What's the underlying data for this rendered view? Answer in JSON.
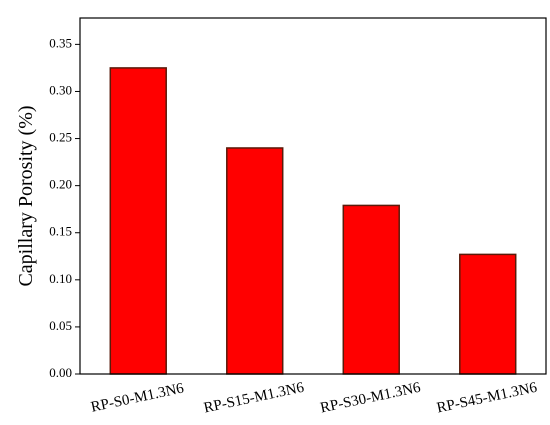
{
  "chart_data": {
    "type": "bar",
    "ylabel": "Capillary Porosity (%)",
    "categories": [
      "RP-S0-M1.3N6",
      "RP-S15-M1.3N6",
      "RP-S30-M1.3N6",
      "RP-S45-M1.3N6"
    ],
    "values": [
      0.325,
      0.24,
      0.179,
      0.127
    ],
    "color": "#ff0000",
    "ylim": [
      0,
      0.378
    ],
    "yticks": [
      {
        "value": 0,
        "label": "0.00"
      },
      0.05,
      {
        "value": 0.1,
        "label": "0.10"
      },
      0.15,
      {
        "value": 0.2,
        "label": "0.20"
      },
      0.25,
      {
        "value": 0.3,
        "label": "0.30"
      },
      0.35
    ]
  }
}
